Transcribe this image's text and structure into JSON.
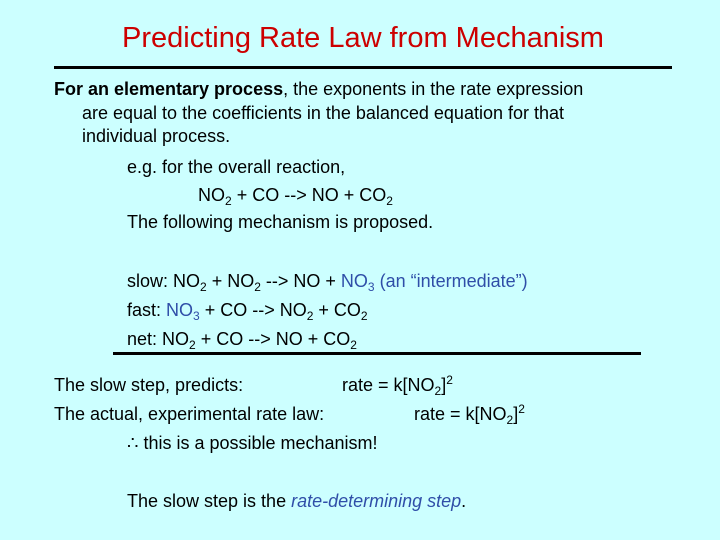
{
  "title": "Predicting Rate Law from Mechanism",
  "intro": {
    "bold": "For an elementary process",
    "rest1": ", the exponents in the rate expression",
    "line2": "are equal to the coefficients in the balanced equation for that",
    "line3": "individual process."
  },
  "example": {
    "eg": "e.g. for the overall reaction,",
    "overall": {
      "no2": "NO",
      "sub2": "2",
      "rest": " + CO --> NO + CO",
      "sub2b": "2"
    },
    "proposed": "The following mechanism is proposed."
  },
  "mechanism": {
    "slow": {
      "label": "slow: NO",
      "s1": "2",
      "plus": " + NO",
      "s2": "2",
      "arrow": " --> NO + ",
      "no3": "NO",
      "s3": "3",
      "note": " (an “intermediate”)"
    },
    "fast": {
      "label": "fast: ",
      "no3": "NO",
      "s1": "3",
      "rest": " + CO --> NO",
      "s2": "2",
      "plus": " + CO",
      "s3": "2"
    },
    "net": {
      "label": "net: NO",
      "s1": "2",
      "rest": " + CO --> NO + CO",
      "s2": "2"
    }
  },
  "conclusion": {
    "slow_label": "The slow step, predicts:",
    "slow_rate": "rate = k[NO",
    "slow_sub": "2",
    "slow_close": "]",
    "slow_sup": "2",
    "actual_label": "The actual, experimental rate law:",
    "actual_rate": "rate = k[NO",
    "actual_sub": "2",
    "actual_close": "]",
    "actual_sup": "2",
    "therefore": "∴ this is a possible mechanism!"
  },
  "final": {
    "pre": "The slow step is the ",
    "term": "rate-determining step",
    "post": "."
  }
}
